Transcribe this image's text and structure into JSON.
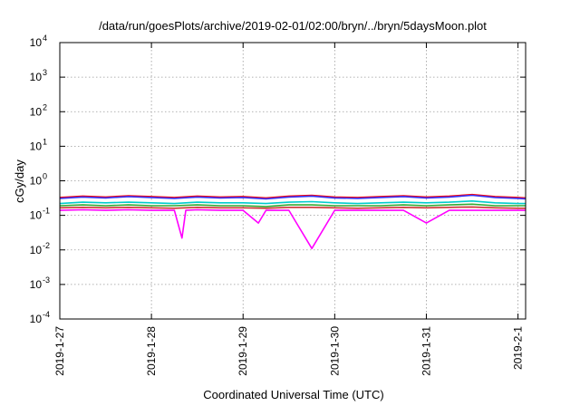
{
  "chart_data": {
    "type": "line",
    "title": "/data/run/goesPlots/archive/2019-02-01/02:00/bryn/../bryn/5daysMoon.plot",
    "xlabel": "Coordinated Universal Time (UTC)",
    "ylabel": "cGy/day",
    "yscale": "log",
    "ylim": [
      0.0001,
      10000
    ],
    "xlim": [
      "2019-01-27T00:00",
      "2019-02-01T02:00"
    ],
    "grid": true,
    "y_ticks": [
      {
        "base": "10",
        "exp": "-4",
        "value": 0.0001
      },
      {
        "base": "10",
        "exp": "-3",
        "value": 0.001
      },
      {
        "base": "10",
        "exp": "-2",
        "value": 0.01
      },
      {
        "base": "10",
        "exp": "-1",
        "value": 0.1
      },
      {
        "base": "10",
        "exp": "0",
        "value": 1
      },
      {
        "base": "10",
        "exp": "1",
        "value": 10
      },
      {
        "base": "10",
        "exp": "2",
        "value": 100
      },
      {
        "base": "10",
        "exp": "3",
        "value": 1000
      },
      {
        "base": "10",
        "exp": "4",
        "value": 10000
      }
    ],
    "x_ticks": [
      {
        "label": "2019-1-27",
        "value": "2019-01-27T00:00"
      },
      {
        "label": "2019-1-28",
        "value": "2019-01-28T00:00"
      },
      {
        "label": "2019-1-29",
        "value": "2019-01-29T00:00"
      },
      {
        "label": "2019-1-30",
        "value": "2019-01-30T00:00"
      },
      {
        "label": "2019-1-31",
        "value": "2019-01-31T00:00"
      },
      {
        "label": "2019-2-1",
        "value": "2019-02-01T00:00"
      }
    ],
    "series": [
      {
        "color": "#ff0000",
        "x": [
          "2019-01-27T00:00",
          "2019-01-27T06:00",
          "2019-01-27T12:00",
          "2019-01-27T18:00",
          "2019-01-28T00:00",
          "2019-01-28T06:00",
          "2019-01-28T12:00",
          "2019-01-28T18:00",
          "2019-01-29T00:00",
          "2019-01-29T06:00",
          "2019-01-29T12:00",
          "2019-01-29T18:00",
          "2019-01-30T00:00",
          "2019-01-30T06:00",
          "2019-01-30T12:00",
          "2019-01-30T18:00",
          "2019-01-31T00:00",
          "2019-01-31T06:00",
          "2019-01-31T12:00",
          "2019-01-31T18:00",
          "2019-02-01T00:00",
          "2019-02-01T02:00"
        ],
        "y": [
          0.33,
          0.36,
          0.34,
          0.37,
          0.35,
          0.33,
          0.36,
          0.34,
          0.35,
          0.32,
          0.36,
          0.38,
          0.34,
          0.33,
          0.35,
          0.37,
          0.34,
          0.36,
          0.4,
          0.35,
          0.33,
          0.32
        ]
      },
      {
        "color": "#3333ff",
        "x": [
          "2019-01-27T00:00",
          "2019-01-27T06:00",
          "2019-01-27T12:00",
          "2019-01-27T18:00",
          "2019-01-28T00:00",
          "2019-01-28T06:00",
          "2019-01-28T12:00",
          "2019-01-28T18:00",
          "2019-01-29T00:00",
          "2019-01-29T06:00",
          "2019-01-29T12:00",
          "2019-01-29T18:00",
          "2019-01-30T00:00",
          "2019-01-30T06:00",
          "2019-01-30T12:00",
          "2019-01-30T18:00",
          "2019-01-31T00:00",
          "2019-01-31T06:00",
          "2019-01-31T12:00",
          "2019-01-31T18:00",
          "2019-02-01T00:00",
          "2019-02-01T02:00"
        ],
        "y": [
          0.31,
          0.34,
          0.32,
          0.35,
          0.33,
          0.31,
          0.34,
          0.32,
          0.33,
          0.3,
          0.34,
          0.36,
          0.32,
          0.31,
          0.33,
          0.35,
          0.32,
          0.34,
          0.38,
          0.33,
          0.31,
          0.3
        ]
      },
      {
        "color": "#00cccc",
        "x": [
          "2019-01-27T00:00",
          "2019-01-27T06:00",
          "2019-01-27T12:00",
          "2019-01-27T18:00",
          "2019-01-28T00:00",
          "2019-01-28T06:00",
          "2019-01-28T12:00",
          "2019-01-28T18:00",
          "2019-01-29T00:00",
          "2019-01-29T06:00",
          "2019-01-29T12:00",
          "2019-01-29T18:00",
          "2019-01-30T00:00",
          "2019-01-30T06:00",
          "2019-01-30T12:00",
          "2019-01-30T18:00",
          "2019-01-31T00:00",
          "2019-01-31T06:00",
          "2019-01-31T12:00",
          "2019-01-31T18:00",
          "2019-02-01T00:00",
          "2019-02-01T02:00"
        ],
        "y": [
          0.22,
          0.24,
          0.23,
          0.24,
          0.23,
          0.22,
          0.24,
          0.23,
          0.23,
          0.22,
          0.24,
          0.25,
          0.23,
          0.22,
          0.23,
          0.24,
          0.23,
          0.24,
          0.26,
          0.23,
          0.22,
          0.22
        ]
      },
      {
        "color": "#33aa33",
        "x": [
          "2019-01-27T00:00",
          "2019-01-27T06:00",
          "2019-01-27T12:00",
          "2019-01-27T18:00",
          "2019-01-28T00:00",
          "2019-01-28T06:00",
          "2019-01-28T12:00",
          "2019-01-28T18:00",
          "2019-01-29T00:00",
          "2019-01-29T06:00",
          "2019-01-29T12:00",
          "2019-01-29T18:00",
          "2019-01-30T00:00",
          "2019-01-30T06:00",
          "2019-01-30T12:00",
          "2019-01-30T18:00",
          "2019-01-31T00:00",
          "2019-01-31T06:00",
          "2019-01-31T12:00",
          "2019-01-31T18:00",
          "2019-02-01T00:00",
          "2019-02-01T02:00"
        ],
        "y": [
          0.19,
          0.2,
          0.19,
          0.2,
          0.19,
          0.19,
          0.2,
          0.19,
          0.19,
          0.18,
          0.2,
          0.2,
          0.19,
          0.19,
          0.19,
          0.2,
          0.19,
          0.2,
          0.21,
          0.19,
          0.19,
          0.19
        ]
      },
      {
        "color": "#cc3333",
        "x": [
          "2019-01-27T00:00",
          "2019-01-27T06:00",
          "2019-01-27T12:00",
          "2019-01-27T18:00",
          "2019-01-28T00:00",
          "2019-01-28T06:00",
          "2019-01-28T12:00",
          "2019-01-28T18:00",
          "2019-01-29T00:00",
          "2019-01-29T06:00",
          "2019-01-29T12:00",
          "2019-01-29T18:00",
          "2019-01-30T00:00",
          "2019-01-30T06:00",
          "2019-01-30T12:00",
          "2019-01-30T18:00",
          "2019-01-31T00:00",
          "2019-01-31T06:00",
          "2019-01-31T12:00",
          "2019-01-31T18:00",
          "2019-02-01T00:00",
          "2019-02-01T02:00"
        ],
        "y": [
          0.165,
          0.17,
          0.165,
          0.17,
          0.165,
          0.16,
          0.17,
          0.165,
          0.165,
          0.16,
          0.17,
          0.17,
          0.165,
          0.16,
          0.165,
          0.17,
          0.165,
          0.17,
          0.175,
          0.165,
          0.16,
          0.16
        ]
      },
      {
        "color": "#ff00ff",
        "x": [
          "2019-01-27T00:00",
          "2019-01-27T06:00",
          "2019-01-27T12:00",
          "2019-01-27T18:00",
          "2019-01-28T00:00",
          "2019-01-28T06:00",
          "2019-01-28T08:00",
          "2019-01-28T09:00",
          "2019-01-28T12:00",
          "2019-01-28T18:00",
          "2019-01-29T00:00",
          "2019-01-29T04:00",
          "2019-01-29T06:00",
          "2019-01-29T12:00",
          "2019-01-29T14:00",
          "2019-01-29T18:00",
          "2019-01-30T00:00",
          "2019-01-30T06:00",
          "2019-01-30T12:00",
          "2019-01-30T18:00",
          "2019-01-31T00:00",
          "2019-01-31T06:00",
          "2019-01-31T12:00",
          "2019-01-31T18:00",
          "2019-02-01T00:00",
          "2019-02-01T02:00"
        ],
        "y": [
          0.14,
          0.145,
          0.14,
          0.145,
          0.14,
          0.14,
          0.022,
          0.14,
          0.145,
          0.14,
          0.14,
          0.06,
          0.14,
          0.14,
          0.06,
          0.011,
          0.14,
          0.14,
          0.14,
          0.14,
          0.06,
          0.14,
          0.14,
          0.14,
          0.14,
          0.14
        ]
      }
    ]
  }
}
